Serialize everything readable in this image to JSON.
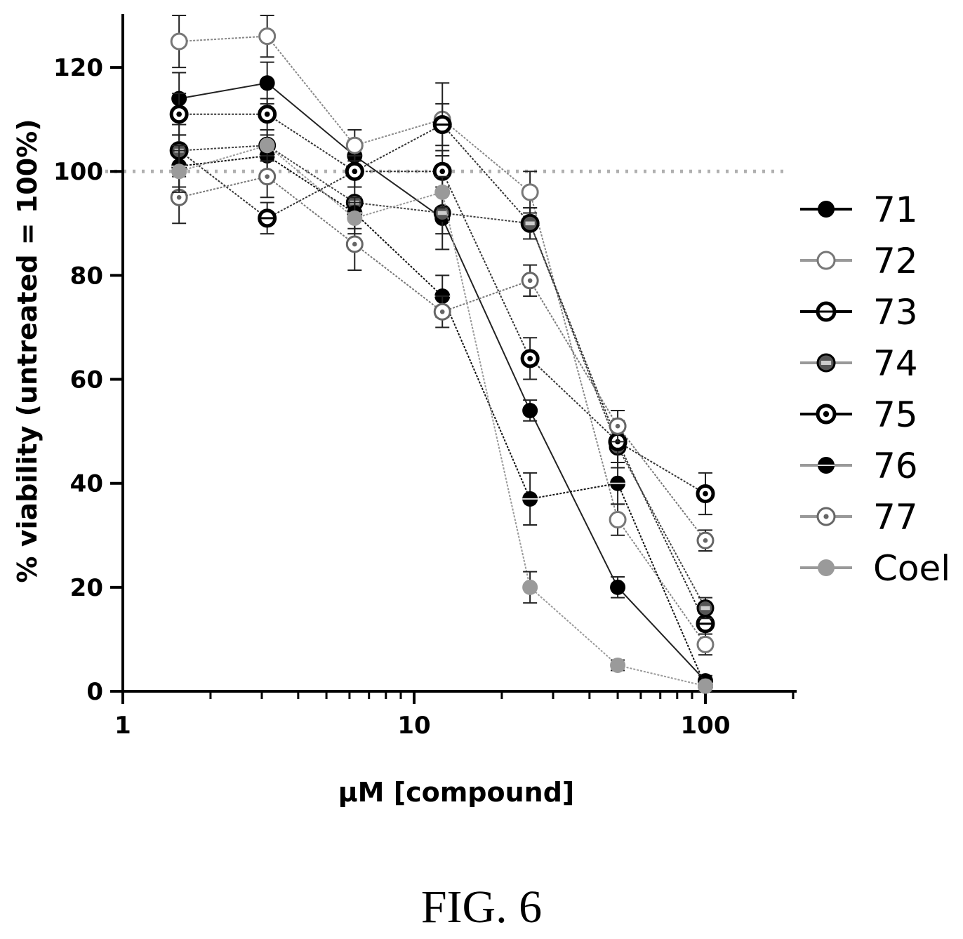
{
  "chart_data": {
    "type": "line",
    "xlabel": "μM [compound]",
    "ylabel": "% viability (untreated = 100%)",
    "xscale": "log",
    "xlim": [
      1,
      200
    ],
    "ylim": [
      0,
      130
    ],
    "xticks": [
      1,
      10,
      100
    ],
    "yticks": [
      0,
      20,
      40,
      60,
      80,
      100,
      120
    ],
    "reference_line": {
      "y": 100,
      "style": "dotted"
    },
    "error_bars": true,
    "legend_position": "right",
    "x": [
      1.56,
      3.13,
      6.25,
      12.5,
      25,
      50,
      100
    ],
    "series": [
      {
        "name": "71",
        "marker": "filled-circle",
        "values": [
          114,
          117,
          103,
          91,
          54,
          20,
          2
        ],
        "errors": [
          5,
          4,
          3,
          6,
          2,
          2,
          1
        ]
      },
      {
        "name": "72",
        "marker": "open-circle",
        "values": [
          125,
          126,
          105,
          110,
          96,
          33,
          9
        ],
        "errors": [
          5,
          4,
          3,
          7,
          4,
          3,
          2
        ]
      },
      {
        "name": "73",
        "marker": "circle-cross",
        "values": [
          104,
          91,
          100,
          109,
          90,
          48,
          13
        ],
        "errors": [
          5,
          3,
          3,
          4,
          3,
          4,
          2
        ]
      },
      {
        "name": "74",
        "marker": "half-circle",
        "values": [
          104,
          105,
          94,
          92,
          90,
          47,
          16
        ],
        "errors": [
          3,
          3,
          3,
          4,
          3,
          4,
          2
        ]
      },
      {
        "name": "75",
        "marker": "circle-dot",
        "values": [
          111,
          111,
          100,
          100,
          64,
          48,
          38
        ],
        "errors": [
          4,
          3,
          3,
          4,
          4,
          4,
          4
        ]
      },
      {
        "name": "76",
        "marker": "split-circle",
        "values": [
          101,
          103,
          92,
          76,
          37,
          40,
          1
        ],
        "errors": [
          4,
          4,
          3,
          4,
          5,
          4,
          1
        ]
      },
      {
        "name": "77",
        "marker": "dotted-circle",
        "values": [
          95,
          99,
          86,
          73,
          79,
          51,
          29
        ],
        "errors": [
          5,
          4,
          5,
          3,
          3,
          3,
          2
        ]
      },
      {
        "name": "Coel",
        "marker": "gray-circle",
        "values": [
          100,
          105,
          91,
          96,
          20,
          5,
          1
        ],
        "errors": [
          4,
          3,
          3,
          3,
          3,
          1,
          1
        ]
      }
    ]
  },
  "caption": "FIG. 6",
  "colors": {
    "ink": "#000000",
    "gray": "#9a9a9a",
    "light_gray": "#c8c8c8"
  }
}
